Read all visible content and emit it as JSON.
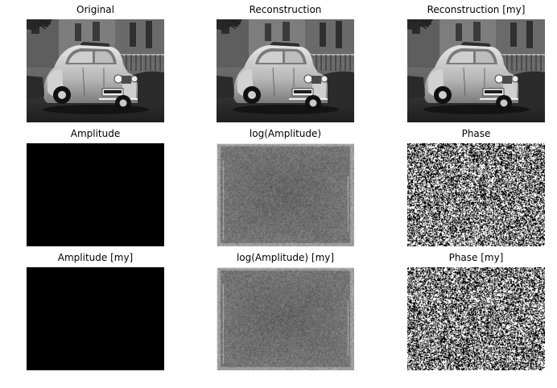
{
  "figure": {
    "panels": [
      {
        "key": "original",
        "title": "Original",
        "kind": "photo"
      },
      {
        "key": "reconstruction",
        "title": "Reconstruction",
        "kind": "photo"
      },
      {
        "key": "reconstruction_my",
        "title": "Reconstruction [my]",
        "kind": "photo"
      },
      {
        "key": "amplitude",
        "title": "Amplitude",
        "kind": "black"
      },
      {
        "key": "log_amplitude",
        "title": "log(Amplitude)",
        "kind": "spectrum"
      },
      {
        "key": "phase",
        "title": "Phase",
        "kind": "noise"
      },
      {
        "key": "amplitude_my",
        "title": "Amplitude [my]",
        "kind": "black"
      },
      {
        "key": "log_amplitude_my",
        "title": "log(Amplitude) [my]",
        "kind": "spectrum"
      },
      {
        "key": "phase_my",
        "title": "Phase [my]",
        "kind": "noise"
      }
    ]
  }
}
